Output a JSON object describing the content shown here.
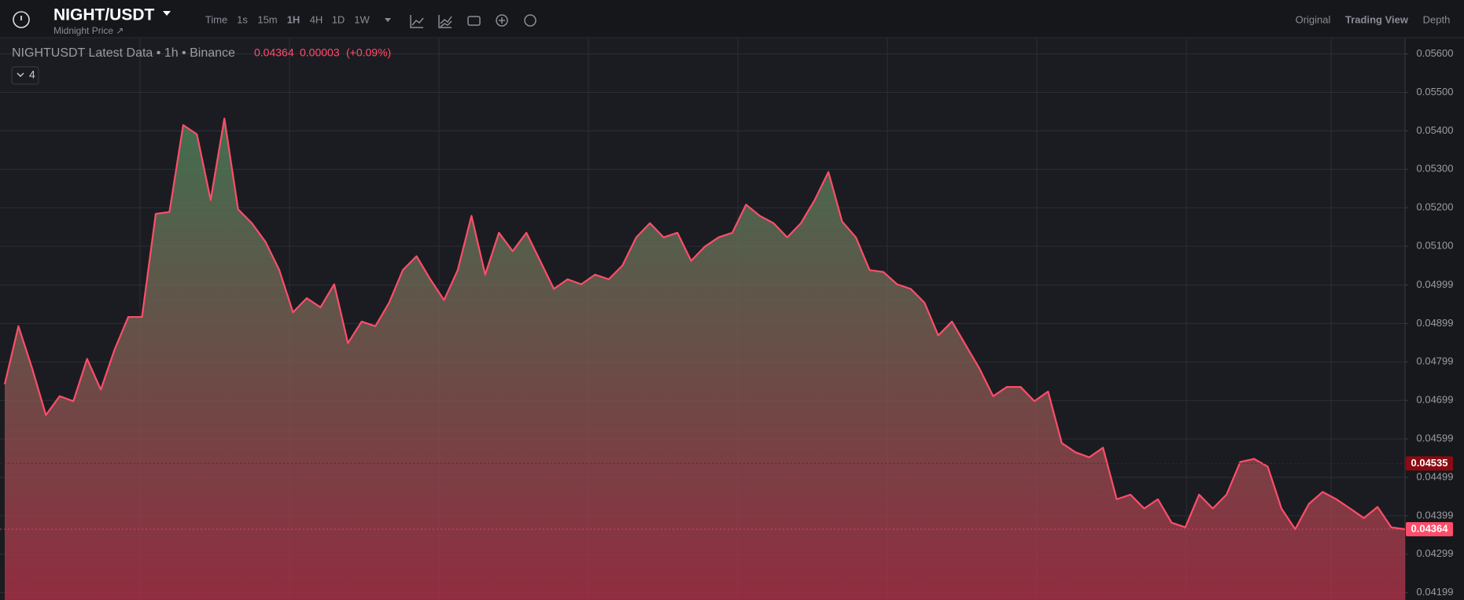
{
  "header": {
    "symbol": "NIGHT/USDT",
    "subtitle": "Midnight Price ↗",
    "intervals": [
      "Time",
      "1s",
      "15m",
      "1H",
      "4H",
      "1D",
      "1W"
    ],
    "views": [
      "Original",
      "Trading View",
      "Depth"
    ]
  },
  "legend": {
    "title": "NIGHTUSDT Latest Data • 1h • Binance",
    "price": "0.04364",
    "change": "0.00003",
    "change_pct": "(+0.09%)",
    "indicators": "4"
  },
  "chart_data": {
    "type": "line",
    "series": [
      {
        "name": "NIGHTUSDT",
        "color": "#ff4d6a",
        "values": [
          0.04741,
          0.04892,
          0.04782,
          0.04661,
          0.0471,
          0.04697,
          0.04807,
          0.04727,
          0.04831,
          0.04916,
          0.04916,
          0.05184,
          0.05189,
          0.05415,
          0.05391,
          0.0522,
          0.05432,
          0.05196,
          0.0516,
          0.05111,
          0.05038,
          0.04928,
          0.04965,
          0.04941,
          0.05001,
          0.04848,
          0.04904,
          0.04892,
          0.04953,
          0.05038,
          0.05074,
          0.05014,
          0.0496,
          0.05038,
          0.05179,
          0.05026,
          0.05135,
          0.05087,
          0.05135,
          0.05062,
          0.04989,
          0.05014,
          0.05001,
          0.05026,
          0.05014,
          0.0505,
          0.05123,
          0.0516,
          0.05123,
          0.05135,
          0.05062,
          0.05099,
          0.05123,
          0.05135,
          0.05208,
          0.05179,
          0.0516,
          0.05123,
          0.0516,
          0.0522,
          0.05293,
          0.05164,
          0.05123,
          0.05038,
          0.05033,
          0.05001,
          0.04989,
          0.04953,
          0.04868,
          0.04904,
          0.04843,
          0.04782,
          0.0471,
          0.04734,
          0.04734,
          0.04697,
          0.04722,
          0.04588,
          0.04564,
          0.04551,
          0.04576,
          0.04442,
          0.04454,
          0.04418,
          0.04442,
          0.04381,
          0.04369,
          0.04454,
          0.04418,
          0.04454,
          0.04539,
          0.04547,
          0.04527,
          0.04418,
          0.04364,
          0.0443,
          0.04461,
          0.04442,
          0.04418,
          0.04393,
          0.04422,
          0.04369,
          0.04364
        ]
      }
    ],
    "price_markers": [
      {
        "value": 0.04535,
        "color": "#8b0c10"
      },
      {
        "value": 0.04364,
        "color": "#ff4d6a"
      }
    ],
    "ylim": [
      0.0418,
      0.0564
    ],
    "yticks": [
      {
        "value": 0.056,
        "label": "0.05600"
      },
      {
        "value": 0.055,
        "label": "0.05500"
      },
      {
        "value": 0.054,
        "label": "0.05400"
      },
      {
        "value": 0.053,
        "label": "0.05300"
      },
      {
        "value": 0.052,
        "label": "0.05200"
      },
      {
        "value": 0.051,
        "label": "0.05100"
      },
      0.04999,
      0.04899,
      0.04799,
      0.04699,
      0.04599,
      0.04499,
      0.04399,
      0.04299,
      0.04199
    ],
    "grid": true
  }
}
